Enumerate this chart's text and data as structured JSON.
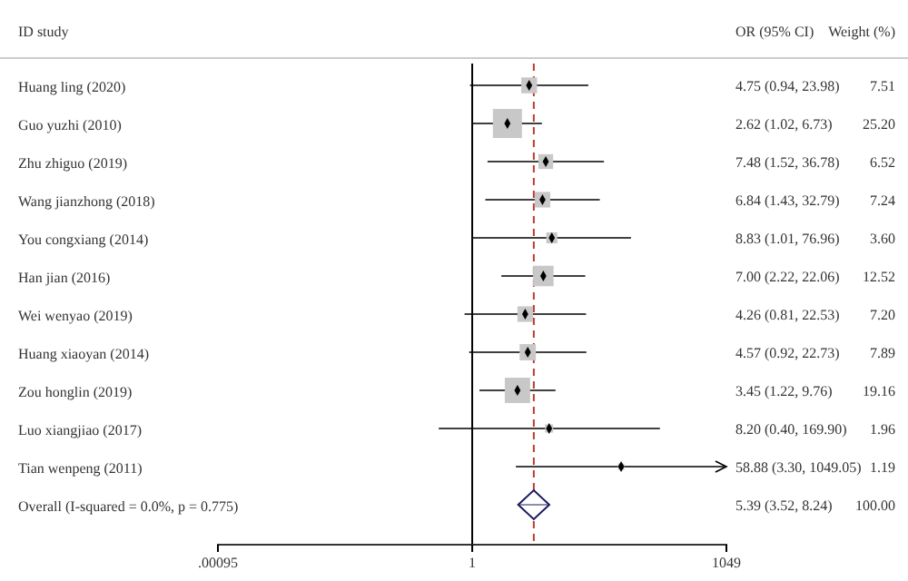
{
  "chart_data": {
    "type": "bubble",
    "orientation": "horizontal",
    "categories": [
      "Huang ling (2020)",
      "Guo yuzhi (2010)",
      "Zhu zhiguo (2019)",
      "Wang jianzhong (2018)",
      "You congxiang (2014)",
      "Han jian (2016)",
      "Wei wenyao (2019)",
      "Huang xiaoyan (2014)",
      "Zou honglin (2019)",
      "Luo xiangjiao (2017)",
      "Tian wenpeng (2011)",
      "Overall (I-squared = 0.0%, p = 0.775)"
    ],
    "series": [
      {
        "type": "bubble",
        "marker": "square",
        "color": "#c8c8c8",
        "values": [
          4.75,
          2.62,
          7.48,
          6.84,
          8.83,
          7.0,
          4.26,
          4.57,
          3.45,
          8.2,
          58.88,
          null
        ],
        "sizes": [
          0.298,
          1,
          0.259,
          0.287,
          0.143,
          0.497,
          0.286,
          0.313,
          0.76,
          0.078,
          0.047,
          null
        ],
        "errors": [
          [
            0.94,
            23.98
          ],
          [
            1.02,
            6.73
          ],
          [
            1.52,
            36.78
          ],
          [
            1.43,
            32.79
          ],
          [
            1.01,
            76.96
          ],
          [
            2.22,
            22.06
          ],
          [
            0.81,
            22.53
          ],
          [
            0.92,
            22.73
          ],
          [
            1.22,
            9.76
          ],
          [
            0.4,
            169.9
          ],
          [
            3.3,
            1049.05
          ],
          null
        ]
      },
      {
        "type": "scatter",
        "marker": "diamond",
        "color": "#1a1a5e",
        "values": [
          null,
          null,
          null,
          null,
          null,
          null,
          null,
          null,
          null,
          null,
          null,
          5.39
        ],
        "errors": [
          null,
          null,
          null,
          null,
          null,
          null,
          null,
          null,
          null,
          null,
          null,
          [
            3.52,
            8.24
          ]
        ]
      }
    ],
    "log": "x",
    "xlim": [
      0.00095,
      1049.05
    ],
    "xticks": [
      {
        "value": 0.00095,
        "label": ".00095"
      },
      1,
      {
        "value": 1049,
        "label": "1049"
      }
    ],
    "ref_lines": [
      {
        "axis": "x",
        "value": 1,
        "color": "#000000",
        "line_style": "solid"
      },
      {
        "axis": "x",
        "value": 5.39,
        "color": "#c0392b",
        "line_style": "dashed"
      }
    ],
    "annotations": [
      "ID study",
      "OR (95% CI)",
      "Weight (%)",
      "4.75 (0.94, 23.98)",
      "2.62 (1.02, 6.73)",
      "7.48 (1.52, 36.78)",
      "6.84 (1.43, 32.79)",
      "8.83 (1.01, 76.96)",
      "7.00 (2.22, 22.06)",
      "4.26 (0.81, 22.53)",
      "4.57 (0.92, 22.73)",
      "3.45 (1.22, 9.76)",
      "8.20 (0.40, 169.90)",
      "58.88 (3.30, 1049.05)",
      "5.39 (3.52, 8.24)",
      "7.51",
      "25.20",
      "6.52",
      "7.24",
      "3.60",
      "12.52",
      "7.20",
      "7.89",
      "19.16",
      "1.96",
      "1.19",
      "100.00"
    ],
    "grid": false
  }
}
